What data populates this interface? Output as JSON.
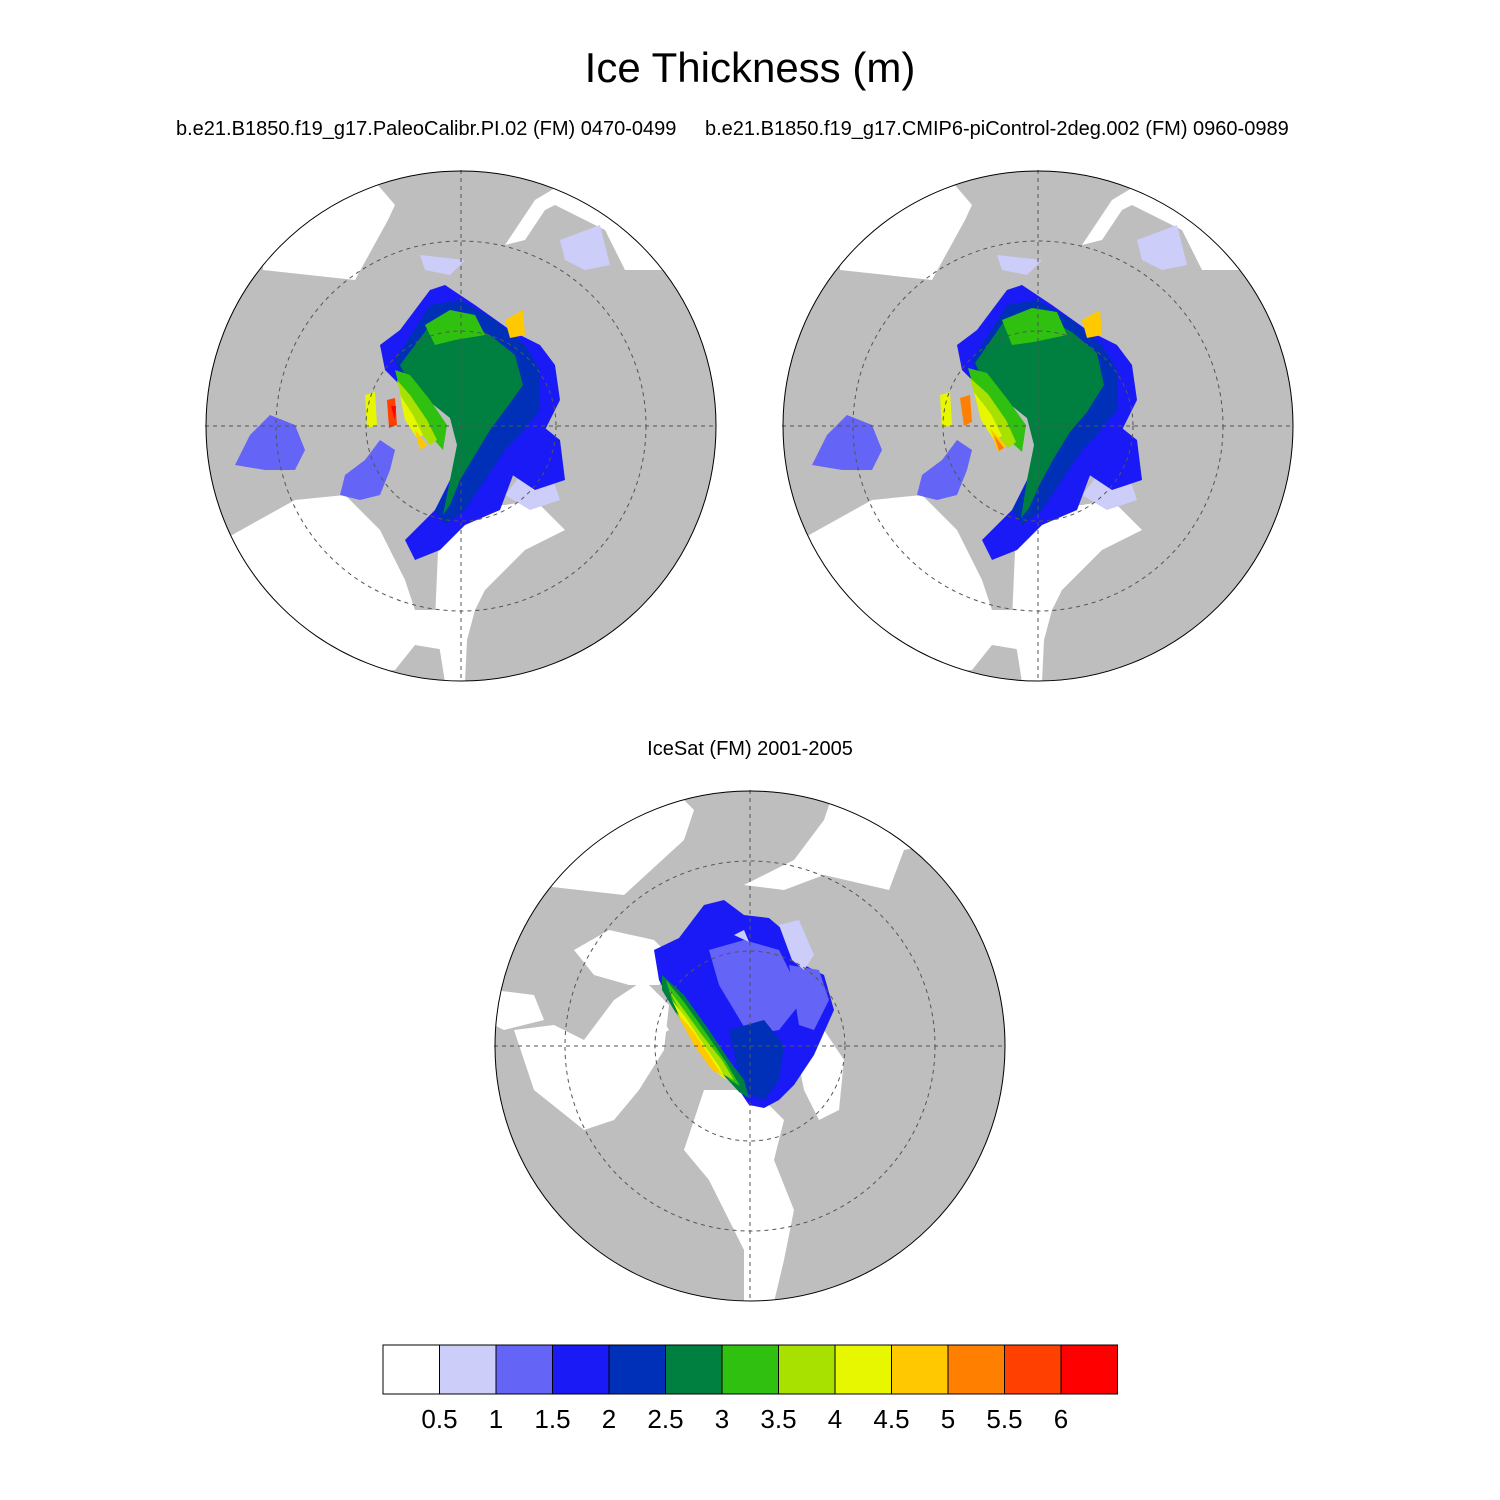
{
  "title": "Ice Thickness (m)",
  "panels": [
    {
      "label": "b.e21.B1850.f19_g17.PaleoCalibr.PI.02 (FM) 0470-0499"
    },
    {
      "label": "b.e21.B1850.f19_g17.CMIP6-piControl-2deg.002 (FM) 0960-0989"
    },
    {
      "label": "IceSat (FM) 2001-2005"
    }
  ],
  "colorbar": {
    "colors": [
      "#ffffff",
      "#cdcdfa",
      "#6464f6",
      "#1a1af6",
      "#0030b8",
      "#008040",
      "#30c010",
      "#a8e000",
      "#e6f700",
      "#ffc800",
      "#ff7f00",
      "#ff4000",
      "#ff0000"
    ],
    "labels": [
      "0.5",
      "1",
      "1.5",
      "2",
      "2.5",
      "3",
      "3.5",
      "4",
      "4.5",
      "5",
      "5.5",
      "6"
    ]
  },
  "colors": {
    "land": "#bebebe",
    "ocean": "#ffffff",
    "grid": "#555555"
  }
}
